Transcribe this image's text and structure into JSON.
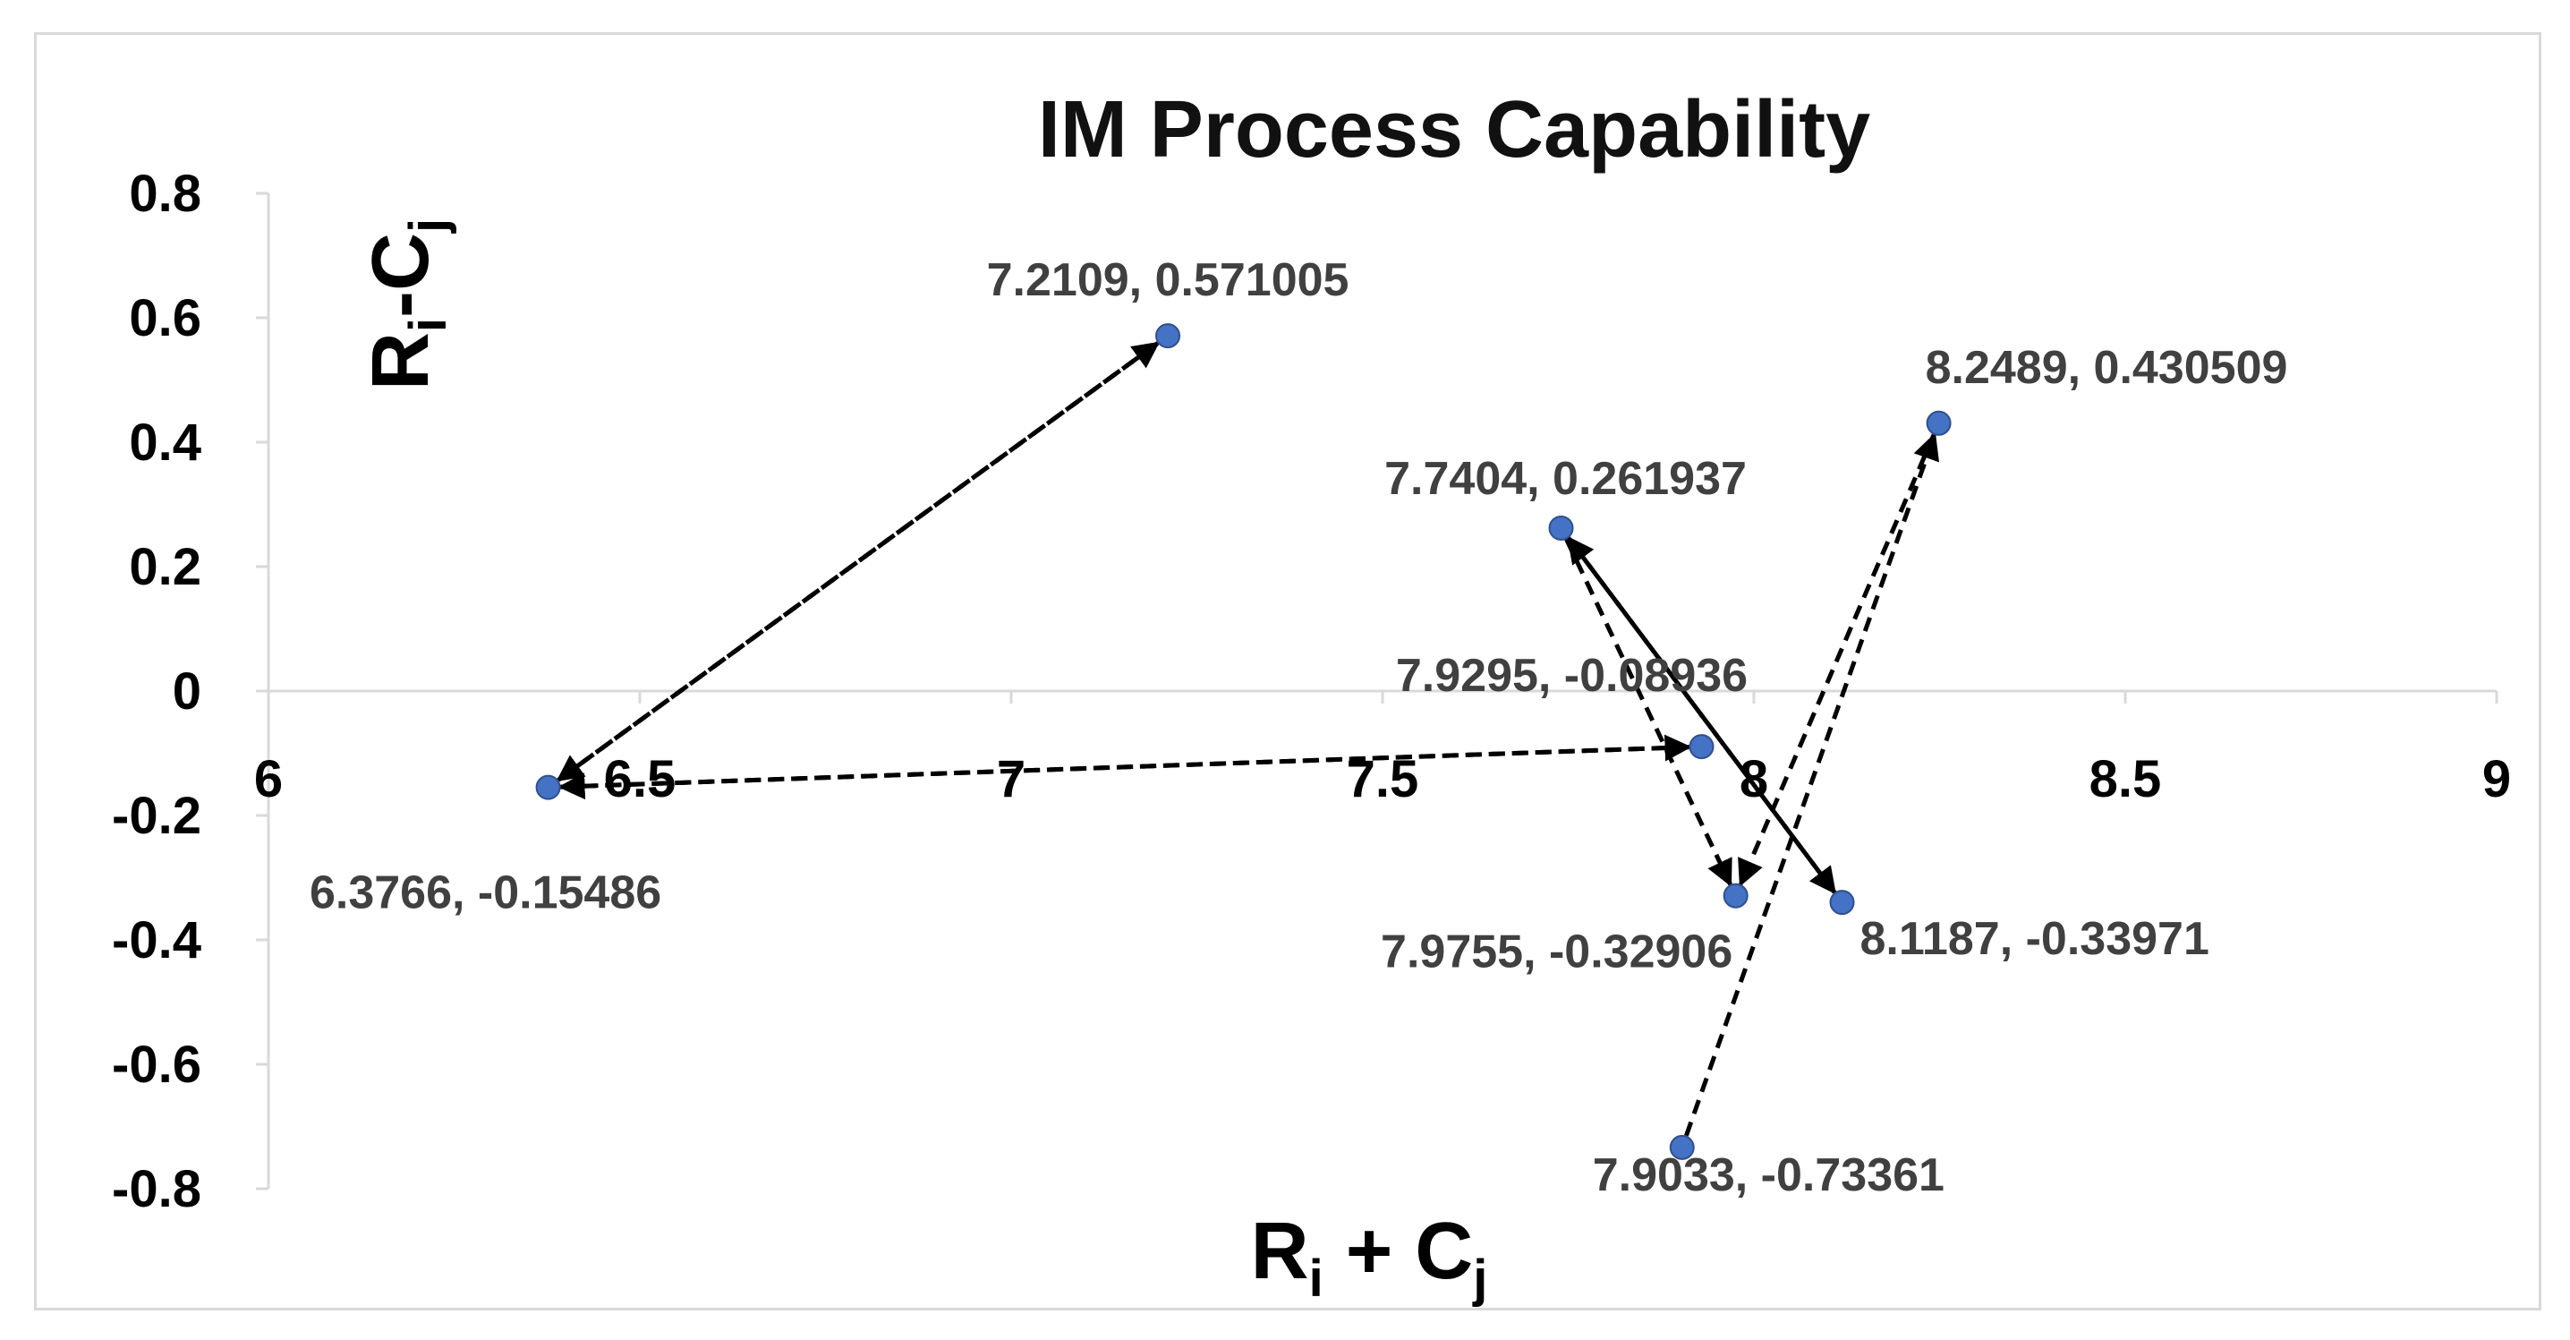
{
  "chart_data": {
    "type": "scatter",
    "title": "IM Process Capability",
    "xlabel": {
      "main": "R",
      "sub1": "i",
      "mid": " + C",
      "sub2": "j"
    },
    "ylabel": {
      "main": "R",
      "sub1": "i",
      "mid": "-C",
      "sub2": "j"
    },
    "xlim": [
      6,
      9
    ],
    "ylim": [
      -0.8,
      0.8
    ],
    "x_ticks": [
      "6",
      "6.5",
      "7",
      "7.5",
      "8",
      "8.5",
      "9"
    ],
    "y_ticks": [
      "0.8",
      "0.6",
      "0.4",
      "0.2",
      "0",
      "-0.2",
      "-0.4",
      "-0.6",
      "-0.8"
    ],
    "grid": false,
    "marker_color": "#4472c4",
    "arrow_color": "#000000",
    "points": [
      {
        "x": 7.2109,
        "y": 0.571005,
        "label": "7.2109, 0.571005"
      },
      {
        "x": 8.2489,
        "y": 0.430509,
        "label": "8.2489, 0.430509"
      },
      {
        "x": 7.7404,
        "y": 0.261937,
        "label": "7.7404, 0.261937"
      },
      {
        "x": 7.9295,
        "y": -0.08936,
        "label": "7.9295, -0.08936"
      },
      {
        "x": 6.3766,
        "y": -0.15486,
        "label": "6.3766, -0.15486"
      },
      {
        "x": 7.9755,
        "y": -0.32906,
        "label": "7.9755, -0.32906"
      },
      {
        "x": 8.1187,
        "y": -0.33971,
        "label": "8.1187, -0.33971"
      },
      {
        "x": 7.9033,
        "y": -0.73361,
        "label": "7.9033, -0.73361"
      }
    ],
    "arrows": [
      {
        "from": 4,
        "to": 0
      },
      {
        "from": 0,
        "to": 4
      },
      {
        "from": 4,
        "to": 3
      },
      {
        "from": 3,
        "to": 4
      },
      {
        "from": 7,
        "to": 1
      },
      {
        "from": 1,
        "to": 5
      },
      {
        "from": 6,
        "to": 2
      },
      {
        "from": 2,
        "to": 6
      },
      {
        "from": 2,
        "to": 5
      }
    ]
  }
}
